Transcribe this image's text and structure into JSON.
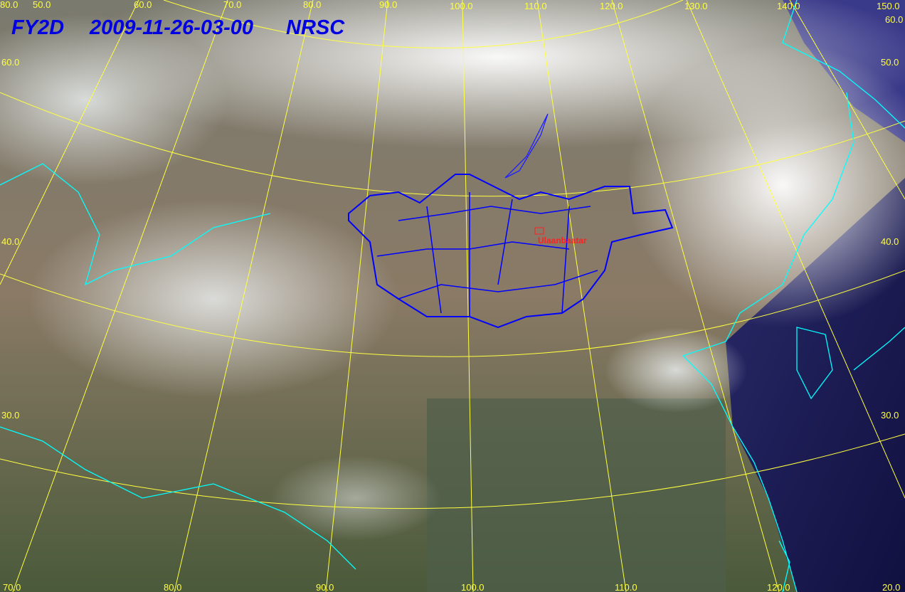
{
  "title": {
    "satellite": "FY2D",
    "datetime": "2009-11-26-03-00",
    "agency": "NRSC"
  },
  "city_label": "Ulaanbaatar",
  "top_labels": [
    "80.0",
    "50.0",
    "60.0",
    "70.0",
    "80.0",
    "90.0",
    "100.0",
    "110.0",
    "120.0",
    "130.0",
    "140.0",
    "150.0"
  ],
  "bottom_labels": [
    "70.0",
    "80.0",
    "90.0",
    "100.0",
    "110.0",
    "120.0",
    "20.0"
  ],
  "left_labels": [
    "60.0",
    "40.0",
    "30.0"
  ],
  "right_labels": [
    "60.0",
    "50.0",
    "40.0",
    "30.0"
  ],
  "colors": {
    "grid": "#ffff40",
    "coast": "#00ffff",
    "border": "#0000ff",
    "title": "#0000e0",
    "city": "#ff2020"
  }
}
